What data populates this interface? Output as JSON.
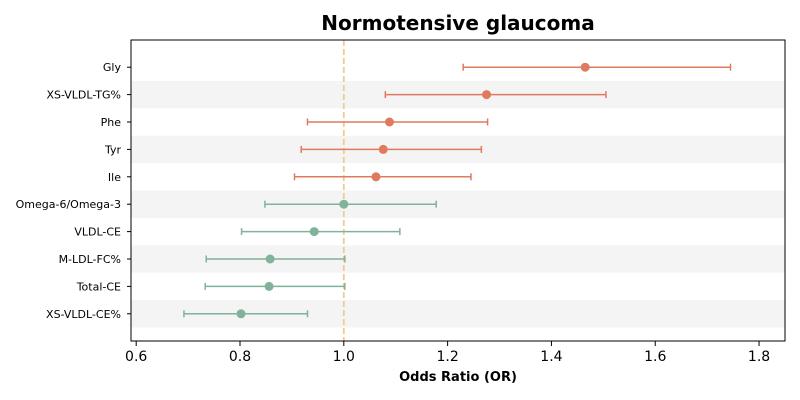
{
  "chart_data": {
    "type": "forest",
    "title": "Normotensive glaucoma",
    "xlabel": "Odds Ratio (OR)",
    "ylabel": "",
    "xlim": [
      0.59,
      1.85
    ],
    "xticks": [
      "0.6",
      "0.8",
      "1.0",
      "1.2",
      "1.4",
      "1.6",
      "1.8"
    ],
    "reference_line": 1.0,
    "grid": false,
    "legend": "none",
    "colors": {
      "positive": "#e07a5f",
      "negative": "#81b29a",
      "reference": "#f2cc8f",
      "band": "#f4f4f4"
    },
    "rows": [
      {
        "label": "Gly",
        "or": 1.465,
        "lower": 1.23,
        "upper": 1.745,
        "group": "positive"
      },
      {
        "label": "XS-VLDL-TG%",
        "or": 1.275,
        "lower": 1.08,
        "upper": 1.505,
        "group": "positive"
      },
      {
        "label": "Phe",
        "or": 1.088,
        "lower": 0.93,
        "upper": 1.277,
        "group": "positive"
      },
      {
        "label": "Tyr",
        "or": 1.076,
        "lower": 0.918,
        "upper": 1.265,
        "group": "positive"
      },
      {
        "label": "Ile",
        "or": 1.062,
        "lower": 0.905,
        "upper": 1.245,
        "group": "positive"
      },
      {
        "label": "Omega-6/Omega-3",
        "or": 1.0,
        "lower": 0.848,
        "upper": 1.178,
        "group": "negative"
      },
      {
        "label": "VLDL-CE",
        "or": 0.943,
        "lower": 0.803,
        "upper": 1.108,
        "group": "negative"
      },
      {
        "label": "M-LDL-FC%",
        "or": 0.858,
        "lower": 0.735,
        "upper": 1.002,
        "group": "negative"
      },
      {
        "label": "Total-CE",
        "or": 0.856,
        "lower": 0.733,
        "upper": 1.002,
        "group": "negative"
      },
      {
        "label": "XS-VLDL-CE%",
        "or": 0.802,
        "lower": 0.692,
        "upper": 0.93,
        "group": "negative"
      }
    ]
  }
}
